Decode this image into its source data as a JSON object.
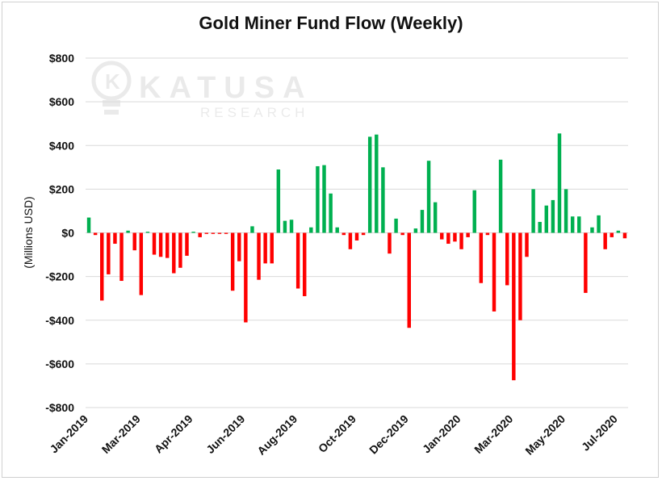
{
  "chart_data": {
    "type": "bar",
    "title": "Gold Miner Fund Flow (Weekly)",
    "ylabel": "(Millions USD)",
    "xlabel": "",
    "ylim": [
      -800,
      800
    ],
    "yticks": [
      800,
      600,
      400,
      200,
      0,
      -200,
      -400,
      -600,
      -800
    ],
    "ytick_labels": [
      "$800",
      "$600",
      "$400",
      "$200",
      "$0",
      "-$200",
      "-$400",
      "-$600",
      "-$800"
    ],
    "grid": true,
    "legend": "none",
    "colors": {
      "positive": "#00b050",
      "negative": "#ff0000",
      "grid": "#d9d9d9"
    },
    "watermark": {
      "name": "KATUSA",
      "sub": "RESEARCH"
    },
    "x_tick_labels": [
      {
        "label": "Jan-2019",
        "index": 0
      },
      {
        "label": "Mar-2019",
        "index": 8
      },
      {
        "label": "Apr-2019",
        "index": 16
      },
      {
        "label": "Jun-2019",
        "index": 24
      },
      {
        "label": "Aug-2019",
        "index": 32
      },
      {
        "label": "Oct-2019",
        "index": 41
      },
      {
        "label": "Dec-2019",
        "index": 49
      },
      {
        "label": "Jan-2020",
        "index": 57
      },
      {
        "label": "Mar-2020",
        "index": 65
      },
      {
        "label": "May-2020",
        "index": 73
      },
      {
        "label": "Jul-2020",
        "index": 81
      }
    ],
    "values": [
      70,
      -10,
      -310,
      -190,
      -50,
      -220,
      10,
      -80,
      -285,
      5,
      -100,
      -110,
      -115,
      -185,
      -160,
      -105,
      5,
      -20,
      -5,
      -5,
      -5,
      -5,
      -265,
      -130,
      -410,
      30,
      -215,
      -140,
      -140,
      290,
      55,
      60,
      -255,
      -290,
      25,
      305,
      310,
      180,
      25,
      -10,
      -75,
      -35,
      -10,
      440,
      450,
      300,
      -95,
      65,
      -10,
      -435,
      20,
      105,
      330,
      140,
      -30,
      -50,
      -40,
      -75,
      -20,
      195,
      -230,
      -10,
      -360,
      335,
      -240,
      -675,
      -400,
      -110,
      200,
      50,
      125,
      150,
      455,
      200,
      75,
      75,
      -275,
      25,
      80,
      -75,
      -20,
      10,
      -25
    ]
  }
}
